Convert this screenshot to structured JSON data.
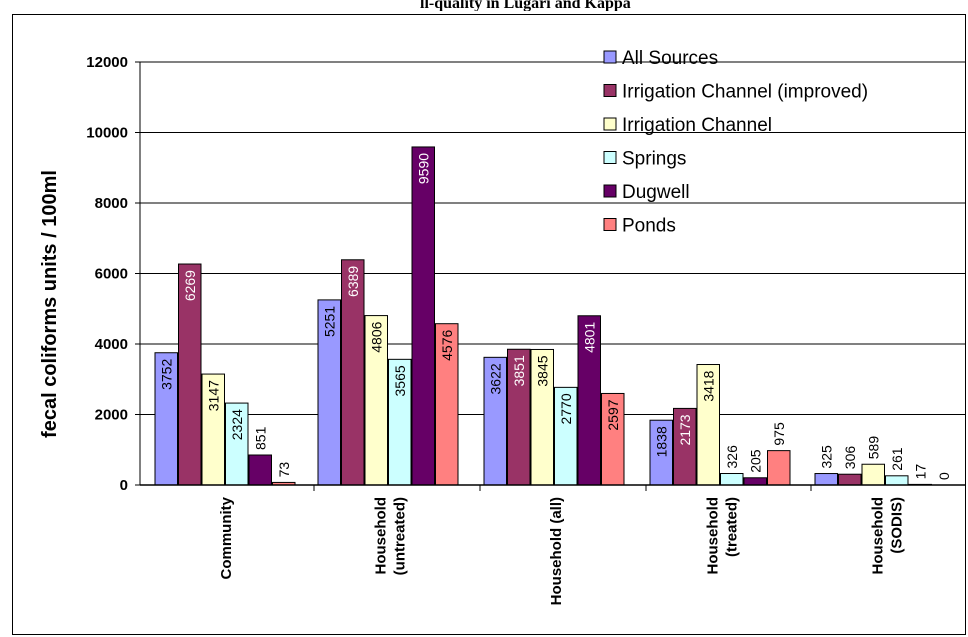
{
  "header": {
    "caption": "ll-quality in Lugari and Kappa"
  },
  "colors": {
    "All Sources": "#9999ff",
    "Irrigation Channel (improved)": "#993366",
    "Irrigation Channel": "#ffffcc",
    "Springs": "#ccffff",
    "Dugwell": "#660066",
    "Ponds": "#ff8080"
  },
  "chart_data": {
    "type": "bar",
    "title": "",
    "xlabel": "",
    "ylabel": "fecal coliforms units / 100ml",
    "ylim": [
      0,
      12000
    ],
    "yticks": [
      "0",
      "2000",
      "4000",
      "6000",
      "8000",
      "10000",
      "12000"
    ],
    "grid": true,
    "legend_position": "top-right",
    "categories": [
      "Community",
      "Household (untreated)",
      "Household (all)",
      "Household (treated)",
      "Household (SODIS)"
    ],
    "series": [
      {
        "name": "All Sources",
        "values": [
          3752,
          5251,
          3622,
          1838,
          325
        ]
      },
      {
        "name": "Irrigation Channel (improved)",
        "values": [
          6269,
          6389,
          3851,
          2173,
          306
        ]
      },
      {
        "name": "Irrigation Channel",
        "values": [
          3147,
          4806,
          3845,
          3418,
          589
        ]
      },
      {
        "name": "Springs",
        "values": [
          2324,
          3565,
          2770,
          326,
          261
        ]
      },
      {
        "name": "Dugwell",
        "values": [
          851,
          9590,
          4801,
          205,
          17
        ]
      },
      {
        "name": "Ponds",
        "values": [
          73,
          4576,
          2597,
          975,
          0
        ]
      }
    ],
    "category_lines": [
      [
        "Community"
      ],
      [
        "Household",
        "(untreated)"
      ],
      [
        "Household (all)"
      ],
      [
        "Household",
        "(treated)"
      ],
      [
        "Household",
        "(SODIS)"
      ]
    ],
    "data_labels": [
      [
        "3752",
        "5251",
        "3622",
        "1838",
        "325"
      ],
      [
        "6269",
        "6389",
        "3851",
        "2173",
        "306"
      ],
      [
        "3147",
        "4806",
        "3845",
        "3418",
        "589"
      ],
      [
        "2324",
        "3565",
        "2770",
        "326",
        "261"
      ],
      [
        "851",
        "9590",
        "4801",
        "205",
        "17"
      ],
      [
        "73",
        "4576",
        "2597",
        "975",
        "0"
      ]
    ]
  }
}
